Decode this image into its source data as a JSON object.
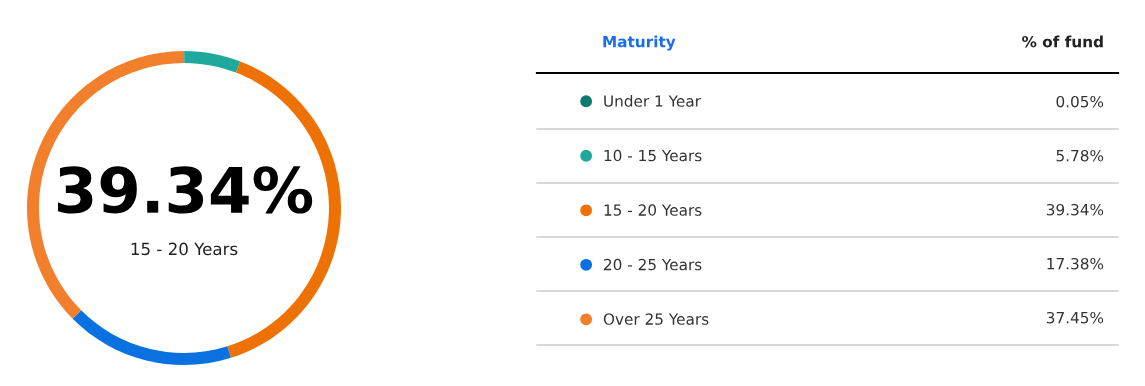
{
  "chart_data": {
    "type": "donut",
    "categories": [
      "Under 1 Year",
      "10 - 15 Years",
      "15 - 20 Years",
      "20 - 25 Years",
      "Over 25 Years"
    ],
    "values": [
      0.05,
      5.78,
      39.34,
      17.38,
      37.45
    ],
    "colors": [
      "#0b7a70",
      "#1fa89c",
      "#ee7203",
      "#0a71e0",
      "#f27f2b"
    ],
    "value_labels": [
      "0.05%",
      "5.78%",
      "39.34%",
      "17.38%",
      "37.45%"
    ],
    "legend": "right",
    "legend_title": "Maturity",
    "annotations": [
      "39.34%",
      "15 - 20 Years",
      "% of fund"
    ]
  }
}
